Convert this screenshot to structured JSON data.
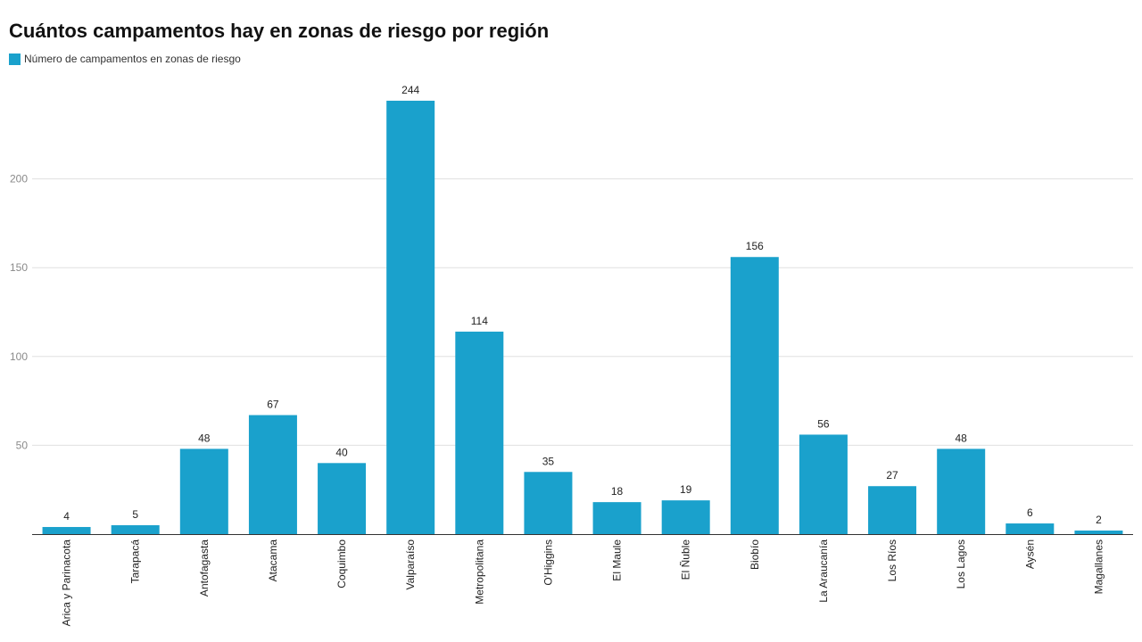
{
  "chart_data": {
    "type": "bar",
    "title": "Cuántos campamentos hay en zonas de riesgo por región",
    "series": [
      {
        "name": "Número de campamentos en zonas de riesgo",
        "color": "#1aa1cc",
        "values": [
          4,
          5,
          48,
          67,
          40,
          244,
          114,
          35,
          18,
          19,
          156,
          56,
          27,
          48,
          6,
          2
        ]
      }
    ],
    "categories": [
      "Arica y Parinacota",
      "Tarapacá",
      "Antofagasta",
      "Atacama",
      "Coquimbo",
      "Valparaíso",
      "Metropolitana",
      "O'Higgins",
      "El Maule",
      "El Ñuble",
      "Biobío",
      "La Araucanía",
      "Los Ríos",
      "Los Lagos",
      "Aysén",
      "Magallanes"
    ],
    "yticks": [
      50,
      100,
      150,
      200
    ],
    "ylim": [
      0,
      244
    ],
    "grid": true,
    "legend": "top-left",
    "xlabel": "",
    "ylabel": ""
  }
}
